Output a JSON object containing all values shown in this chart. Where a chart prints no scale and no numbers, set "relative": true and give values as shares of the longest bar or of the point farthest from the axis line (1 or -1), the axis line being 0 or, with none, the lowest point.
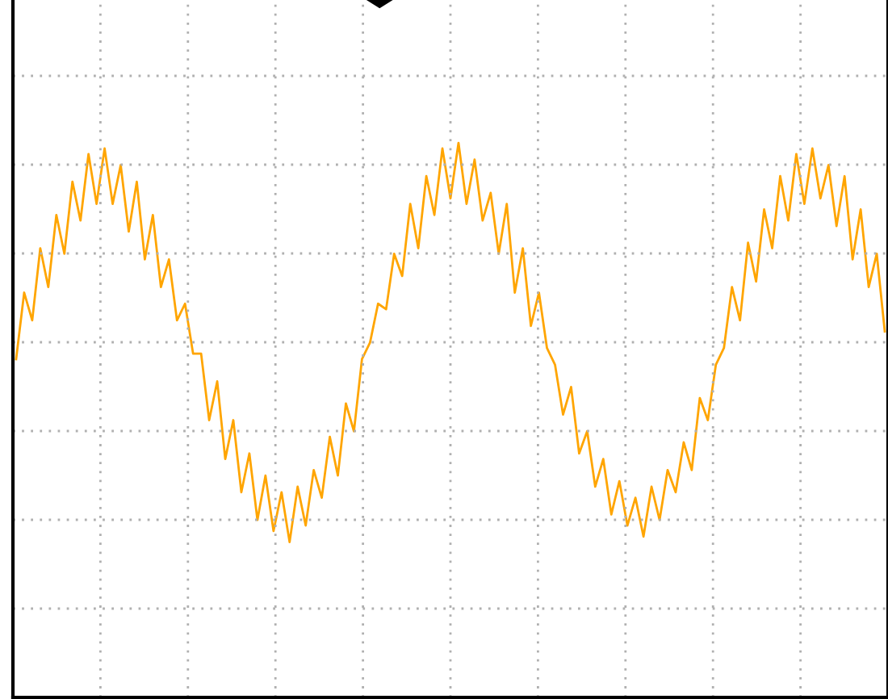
{
  "chart_data": {
    "type": "line",
    "relative": true,
    "grid": true,
    "color": "#ffa500",
    "categories": [
      null,
      null,
      null,
      null,
      null,
      null,
      null,
      null,
      null,
      null,
      null,
      null,
      null,
      null,
      null,
      null,
      null,
      null,
      null,
      null,
      null,
      null,
      null,
      null,
      null,
      null,
      null,
      null,
      null,
      null,
      null,
      null,
      null,
      null,
      null,
      null,
      null,
      null,
      null,
      null,
      null,
      null,
      null,
      null,
      null,
      null,
      null,
      null,
      null,
      null,
      null,
      null,
      null,
      null,
      null,
      null,
      null,
      null,
      null,
      null,
      null,
      null,
      null,
      null,
      null,
      null,
      null,
      null,
      null,
      null,
      null,
      null,
      null,
      null,
      null,
      null,
      null,
      null,
      null,
      null,
      null,
      null,
      null,
      null,
      null,
      null,
      null,
      null,
      null,
      null,
      null,
      null,
      null,
      null,
      null,
      null,
      null,
      null,
      null,
      null,
      null,
      null,
      null,
      null,
      null,
      null,
      null,
      null,
      null
    ],
    "values": [
      0.61,
      0.73,
      0.68,
      0.81,
      0.74,
      0.87,
      0.8,
      0.93,
      0.86,
      0.98,
      0.89,
      0.99,
      0.89,
      0.96,
      0.84,
      0.93,
      0.79,
      0.87,
      0.74,
      0.79,
      0.68,
      0.71,
      0.62,
      0.62,
      0.5,
      0.57,
      0.43,
      0.5,
      0.37,
      0.44,
      0.32,
      0.4,
      0.3,
      0.37,
      0.28,
      0.38,
      0.31,
      0.41,
      0.36,
      0.47,
      0.4,
      0.53,
      0.48,
      0.61,
      0.64,
      0.71,
      0.7,
      0.8,
      0.76,
      0.89,
      0.81,
      0.94,
      0.87,
      0.99,
      0.9,
      1.0,
      0.89,
      0.97,
      0.86,
      0.91,
      0.8,
      0.89,
      0.73,
      0.81,
      0.67,
      0.73,
      0.63,
      0.6,
      0.51,
      0.56,
      0.44,
      0.48,
      0.38,
      0.43,
      0.33,
      0.39,
      0.31,
      0.36,
      0.29,
      0.38,
      0.32,
      0.41,
      0.37,
      0.46,
      0.41,
      0.54,
      0.5,
      0.6,
      0.63,
      0.74,
      0.68,
      0.82,
      0.75,
      0.88,
      0.81,
      0.94,
      0.86,
      0.98,
      0.89,
      0.99,
      0.9,
      0.96,
      0.85,
      0.94,
      0.79,
      0.88,
      0.74,
      0.8,
      0.66
    ]
  }
}
